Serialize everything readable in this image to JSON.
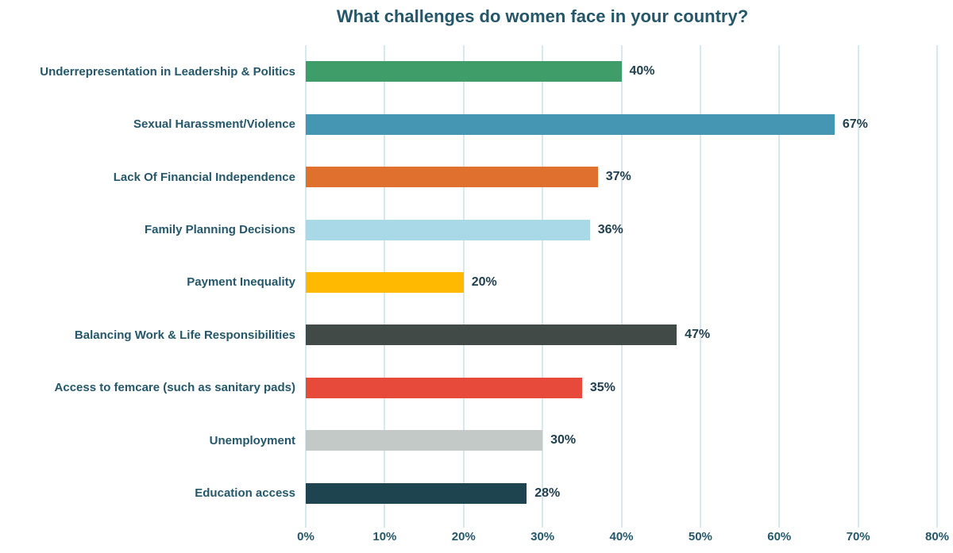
{
  "title": "What challenges do women face in your country?",
  "colors": {
    "background": "#ffffff",
    "title_text": "#24576A",
    "category_text": "#24576A",
    "value_text": "#203F4E",
    "tick_text": "#24576A",
    "gridline": "#D8E8EF"
  },
  "chart_data": {
    "type": "bar",
    "orientation": "horizontal",
    "title": "What challenges do women face in your country?",
    "categories": [
      "Underrepresentation in Leadership & Politics",
      "Sexual Harassment/Violence",
      "Lack Of Financial Independence",
      "Family Planning Decisions",
      "Payment Inequality",
      "Balancing Work & Life Responsibilities",
      "Access to femcare (such as sanitary pads)",
      "Unemployment",
      "Education access"
    ],
    "values": [
      40,
      67,
      37,
      36,
      20,
      47,
      35,
      30,
      28
    ],
    "value_labels": [
      "40%",
      "67%",
      "37%",
      "36%",
      "20%",
      "47%",
      "35%",
      "30%",
      "28%"
    ],
    "bar_colors": [
      "#3E9D68",
      "#4596B3",
      "#E0702E",
      "#A9D9E6",
      "#FFBA00",
      "#424A47",
      "#E74A3B",
      "#C3C9C6",
      "#1E4450"
    ],
    "xlabel": "",
    "ylabel": "",
    "xlim": [
      0,
      80
    ],
    "x_tick_values": [
      0,
      10,
      20,
      30,
      40,
      50,
      60,
      70,
      80
    ],
    "x_tick_labels": [
      "0%",
      "10%",
      "20%",
      "30%",
      "40%",
      "50%",
      "60%",
      "70%",
      "80%"
    ],
    "grid": true,
    "legend": false
  }
}
